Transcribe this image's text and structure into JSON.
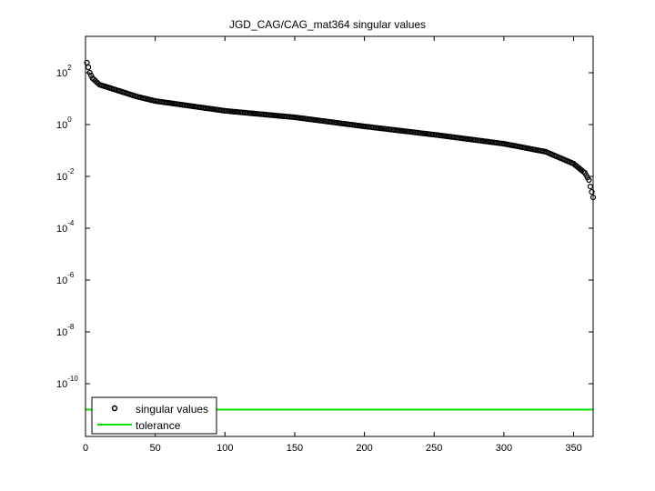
{
  "chart_data": {
    "type": "scatter",
    "title": "JGD_CAG/CAG_mat364 singular values",
    "xlabel": "",
    "ylabel": "",
    "xlim": [
      0,
      364
    ],
    "ylim": [
      1e-12,
      2500
    ],
    "yscale": "log",
    "grid": false,
    "legend_position": "lower left",
    "x_ticks": [
      0,
      50,
      100,
      150,
      200,
      250,
      300,
      350
    ],
    "x_tick_labels": [
      "0",
      "50",
      "100",
      "150",
      "200",
      "250",
      "300",
      "350"
    ],
    "y_ticks_exponents": [
      2,
      0,
      -2,
      -4,
      -6,
      -8,
      -10
    ],
    "y_tick_labels": [
      "10^2",
      "10^0",
      "10^-2",
      "10^-4",
      "10^-6",
      "10^-8",
      "10^-10"
    ],
    "series": [
      {
        "name": "singular values",
        "marker": "circle-open",
        "color": "#000000",
        "x": [
          1,
          2,
          3,
          5,
          10,
          20,
          36,
          50,
          100,
          150,
          200,
          250,
          300,
          330,
          350,
          358,
          361,
          362,
          364
        ],
        "log10_y": [
          2.39,
          2.21,
          2.0,
          1.79,
          1.54,
          1.37,
          1.09,
          0.91,
          0.53,
          0.28,
          -0.07,
          -0.39,
          -0.74,
          -1.05,
          -1.51,
          -1.86,
          -2.14,
          -2.39,
          -2.81
        ]
      },
      {
        "name": "tolerance",
        "type": "line",
        "color": "#00dd00",
        "value": 1e-11
      }
    ]
  },
  "legend": {
    "items": [
      {
        "label": "singular values"
      },
      {
        "label": "tolerance"
      }
    ]
  },
  "colors": {
    "tolerance": "#00e000",
    "markers": "#000000",
    "axes": "#000000"
  }
}
